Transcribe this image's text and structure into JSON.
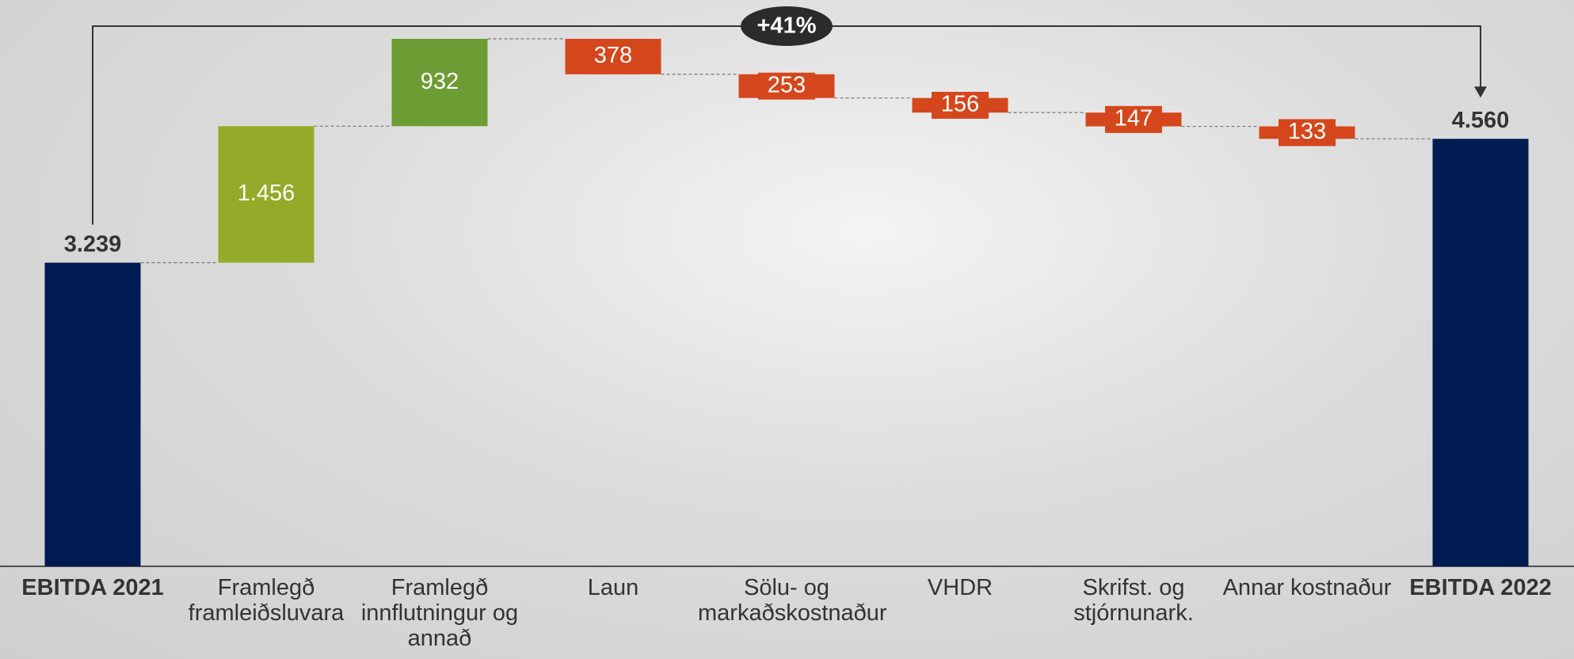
{
  "chart_data": {
    "type": "waterfall",
    "categories": [
      "EBITDA 2021",
      "Framlegð framleiðsluvara",
      "Framlegð innflutningur og annað",
      "Laun",
      "Sölu- og markaðskostnaður",
      "VHDR",
      "Skrifst. og stjórnunark.",
      "Annar kostnaður",
      "EBITDA 2022"
    ],
    "values": [
      3239,
      1456,
      932,
      -378,
      -253,
      -156,
      -147,
      -133,
      4560
    ],
    "value_labels": [
      "3.239",
      "1.456",
      "932",
      "378",
      "253",
      "156",
      "147",
      "133",
      "4.560"
    ],
    "colors": [
      "#001a52",
      "#93ab29",
      "#6e9c34",
      "#d4471c",
      "#d4471c",
      "#d4471c",
      "#d4471c",
      "#d4471c",
      "#001a52"
    ],
    "annotation": "+41%"
  }
}
